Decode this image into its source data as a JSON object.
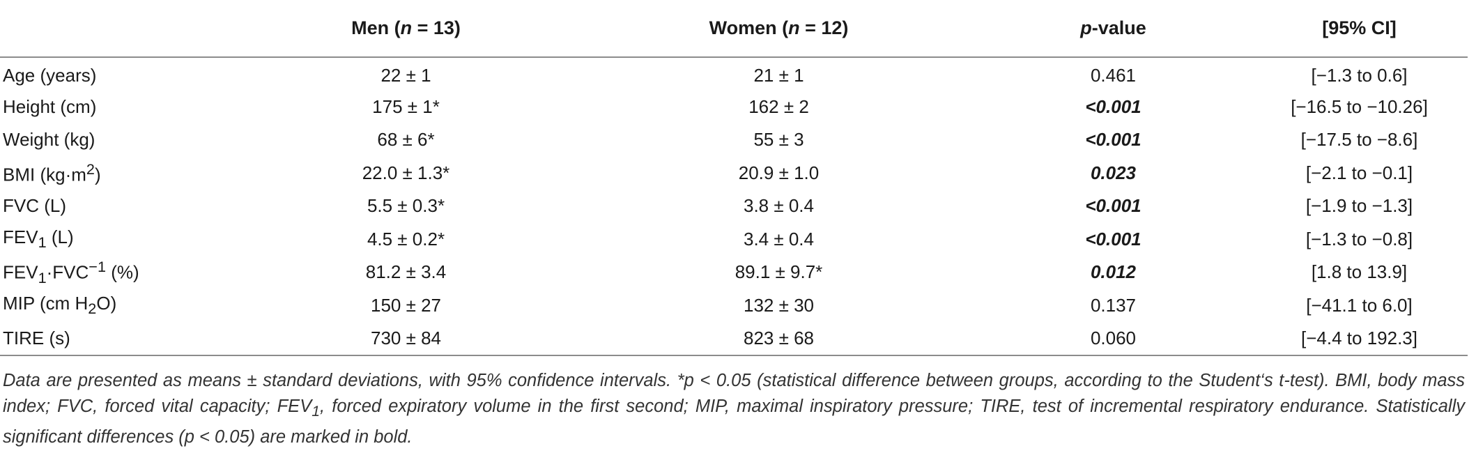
{
  "table": {
    "columns": [
      {
        "pre": "",
        "italic": "",
        "post": ""
      },
      {
        "pre": "Men (",
        "italic": "n",
        "post": " = 13)"
      },
      {
        "pre": "Women (",
        "italic": "n",
        "post": " = 12)"
      },
      {
        "pre": "",
        "italic": "p",
        "post": "-value"
      },
      {
        "pre": "[95% CI]",
        "italic": "",
        "post": ""
      }
    ],
    "rows": [
      {
        "label": {
          "main": "Age (years)",
          "sub": "",
          "sup": "",
          "tail": ""
        },
        "men": "22 ± 1",
        "women": "21 ± 1",
        "p": "0.461",
        "p_sig": false,
        "ci": "[−1.3 to 0.6]"
      },
      {
        "label": {
          "main": "Height (cm)",
          "sub": "",
          "sup": "",
          "tail": ""
        },
        "men": "175 ± 1*",
        "women": "162 ± 2",
        "p": "<0.001",
        "p_sig": true,
        "ci": "[−16.5 to −10.26]"
      },
      {
        "label": {
          "main": "Weight (kg)",
          "sub": "",
          "sup": "",
          "tail": ""
        },
        "men": "68 ± 6*",
        "women": "55 ± 3",
        "p": "<0.001",
        "p_sig": true,
        "ci": "[−17.5 to −8.6]"
      },
      {
        "label": {
          "main": "BMI (kg·m",
          "sub": "",
          "sup": "2",
          "tail": ")"
        },
        "men": "22.0 ± 1.3*",
        "women": "20.9 ± 1.0",
        "p": "0.023",
        "p_sig": true,
        "ci": "[−2.1 to −0.1]"
      },
      {
        "label": {
          "main": "FVC (L)",
          "sub": "",
          "sup": "",
          "tail": ""
        },
        "men": "5.5 ± 0.3*",
        "women": "3.8 ± 0.4",
        "p": "<0.001",
        "p_sig": true,
        "ci": "[−1.9 to −1.3]"
      },
      {
        "label": {
          "main": "FEV",
          "sub": "1",
          "sup": "",
          "tail": " (L)"
        },
        "men": "4.5 ± 0.2*",
        "women": "3.4 ± 0.4",
        "p": "<0.001",
        "p_sig": true,
        "ci": "[−1.3 to −0.8]"
      },
      {
        "label": {
          "main": "FEV",
          "sub": "1",
          "sup": "",
          "tail": "·FVC",
          "sup2": "−1",
          "tail2": " (%)"
        },
        "men": "81.2 ± 3.4",
        "women": "89.1 ± 9.7*",
        "p": "0.012",
        "p_sig": true,
        "ci": "[1.8 to 13.9]"
      },
      {
        "label": {
          "main": "MIP (cm H",
          "sub": "2",
          "sup": "",
          "tail": "O)"
        },
        "men": "150 ± 27",
        "women": "132 ± 30",
        "p": "0.137",
        "p_sig": false,
        "ci": "[−41.1 to 6.0]"
      },
      {
        "label": {
          "main": "TIRE (s)",
          "sub": "",
          "sup": "",
          "tail": ""
        },
        "men": "730 ± 84",
        "women": "823 ± 68",
        "p": "0.060",
        "p_sig": false,
        "ci": "[−4.4 to 192.3]"
      }
    ]
  },
  "footnote": {
    "part1": "Data are presented as means ± standard deviations, with 95% confidence intervals. *p < 0.05 (statistical difference between groups, according to the Student‘s t-test). BMI, body mass index; FVC, forced vital capacity; FEV",
    "sub1": "1",
    "part2": ", forced expiratory volume in the first second; MIP, maximal inspiratory pressure; TIRE, test of incremental respiratory endurance. Statistically significant differences (p < 0.05) are marked in bold."
  }
}
